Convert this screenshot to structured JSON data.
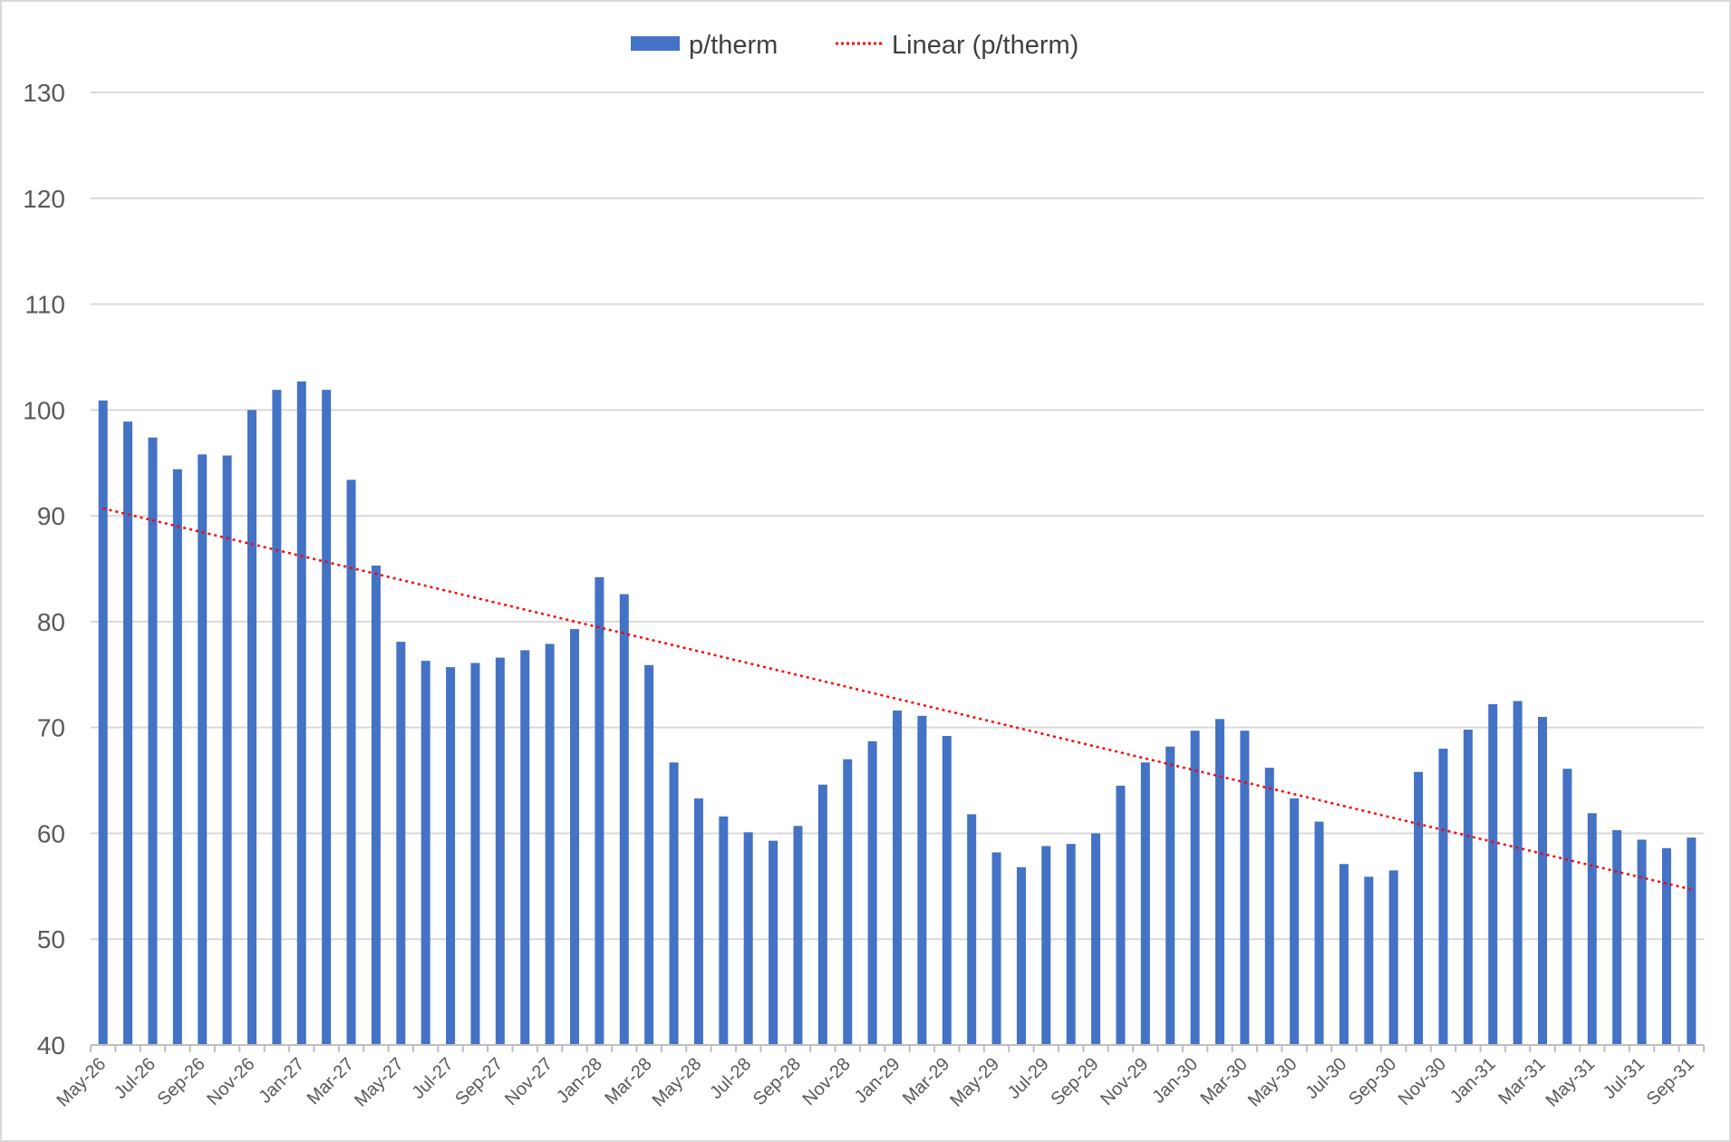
{
  "chart_data": {
    "type": "bar",
    "categories": [
      "May-26",
      "Jun-26",
      "Jul-26",
      "Aug-26",
      "Sep-26",
      "Oct-26",
      "Nov-26",
      "Dec-26",
      "Jan-27",
      "Feb-27",
      "Mar-27",
      "Apr-27",
      "May-27",
      "Jun-27",
      "Jul-27",
      "Aug-27",
      "Sep-27",
      "Oct-27",
      "Nov-27",
      "Dec-27",
      "Jan-28",
      "Feb-28",
      "Mar-28",
      "Apr-28",
      "May-28",
      "Jun-28",
      "Jul-28",
      "Aug-28",
      "Sep-28",
      "Oct-28",
      "Nov-28",
      "Dec-28",
      "Jan-29",
      "Feb-29",
      "Mar-29",
      "Apr-29",
      "May-29",
      "Jun-29",
      "Jul-29",
      "Aug-29",
      "Sep-29",
      "Oct-29",
      "Nov-29",
      "Dec-29",
      "Jan-30",
      "Feb-30",
      "Mar-30",
      "Apr-30",
      "May-30",
      "Jun-30",
      "Jul-30",
      "Aug-30",
      "Sep-30",
      "Oct-30",
      "Nov-30",
      "Dec-30",
      "Jan-31",
      "Feb-31",
      "Mar-31",
      "Apr-31",
      "May-31",
      "Jun-31",
      "Jul-31",
      "Aug-31",
      "Sep-31"
    ],
    "x_tick_labels": [
      "May-26",
      "Jul-26",
      "Sep-26",
      "Nov-26",
      "Jan-27",
      "Mar-27",
      "May-27",
      "Jul-27",
      "Sep-27",
      "Nov-27",
      "Jan-28",
      "Mar-28",
      "May-28",
      "Jul-28",
      "Sep-28",
      "Nov-28",
      "Jan-29",
      "Mar-29",
      "May-29",
      "Jul-29",
      "Sep-29",
      "Nov-29",
      "Jan-30",
      "Mar-30",
      "May-30",
      "Jul-30",
      "Sep-30",
      "Nov-30",
      "Jan-31",
      "Mar-31",
      "May-31",
      "Jul-31",
      "Sep-31"
    ],
    "series": [
      {
        "name": "p/therm",
        "color": "#4472c4",
        "values": [
          100.9,
          98.9,
          97.4,
          94.4,
          95.8,
          95.7,
          100.0,
          101.9,
          102.7,
          101.9,
          93.4,
          85.3,
          78.1,
          76.3,
          75.7,
          76.1,
          76.6,
          77.3,
          77.9,
          79.3,
          84.2,
          82.6,
          75.9,
          66.7,
          63.3,
          61.6,
          60.1,
          59.3,
          60.7,
          64.6,
          67.0,
          68.7,
          71.6,
          71.1,
          69.2,
          61.8,
          58.2,
          56.8,
          58.8,
          59.0,
          60.0,
          64.5,
          66.7,
          68.2,
          69.7,
          70.8,
          69.7,
          66.2,
          63.3,
          61.1,
          57.1,
          55.9,
          56.5,
          65.8,
          68.0,
          69.8,
          72.2,
          72.5,
          71.0,
          66.1,
          61.9,
          60.3,
          59.4,
          58.6,
          59.6
        ]
      }
    ],
    "trendline": {
      "name": "Linear (p/therm)",
      "type": "linear",
      "color": "#ff0000",
      "start_value": 90.7,
      "end_value": 54.7
    },
    "y_tick_labels": [
      "40",
      "50",
      "60",
      "70",
      "80",
      "90",
      "100",
      "110",
      "120",
      "130"
    ],
    "ylim": [
      40,
      130
    ],
    "y_tick_step": 10,
    "grid": true,
    "legend_position": "top-center",
    "title": "",
    "xlabel": "",
    "ylabel": ""
  }
}
